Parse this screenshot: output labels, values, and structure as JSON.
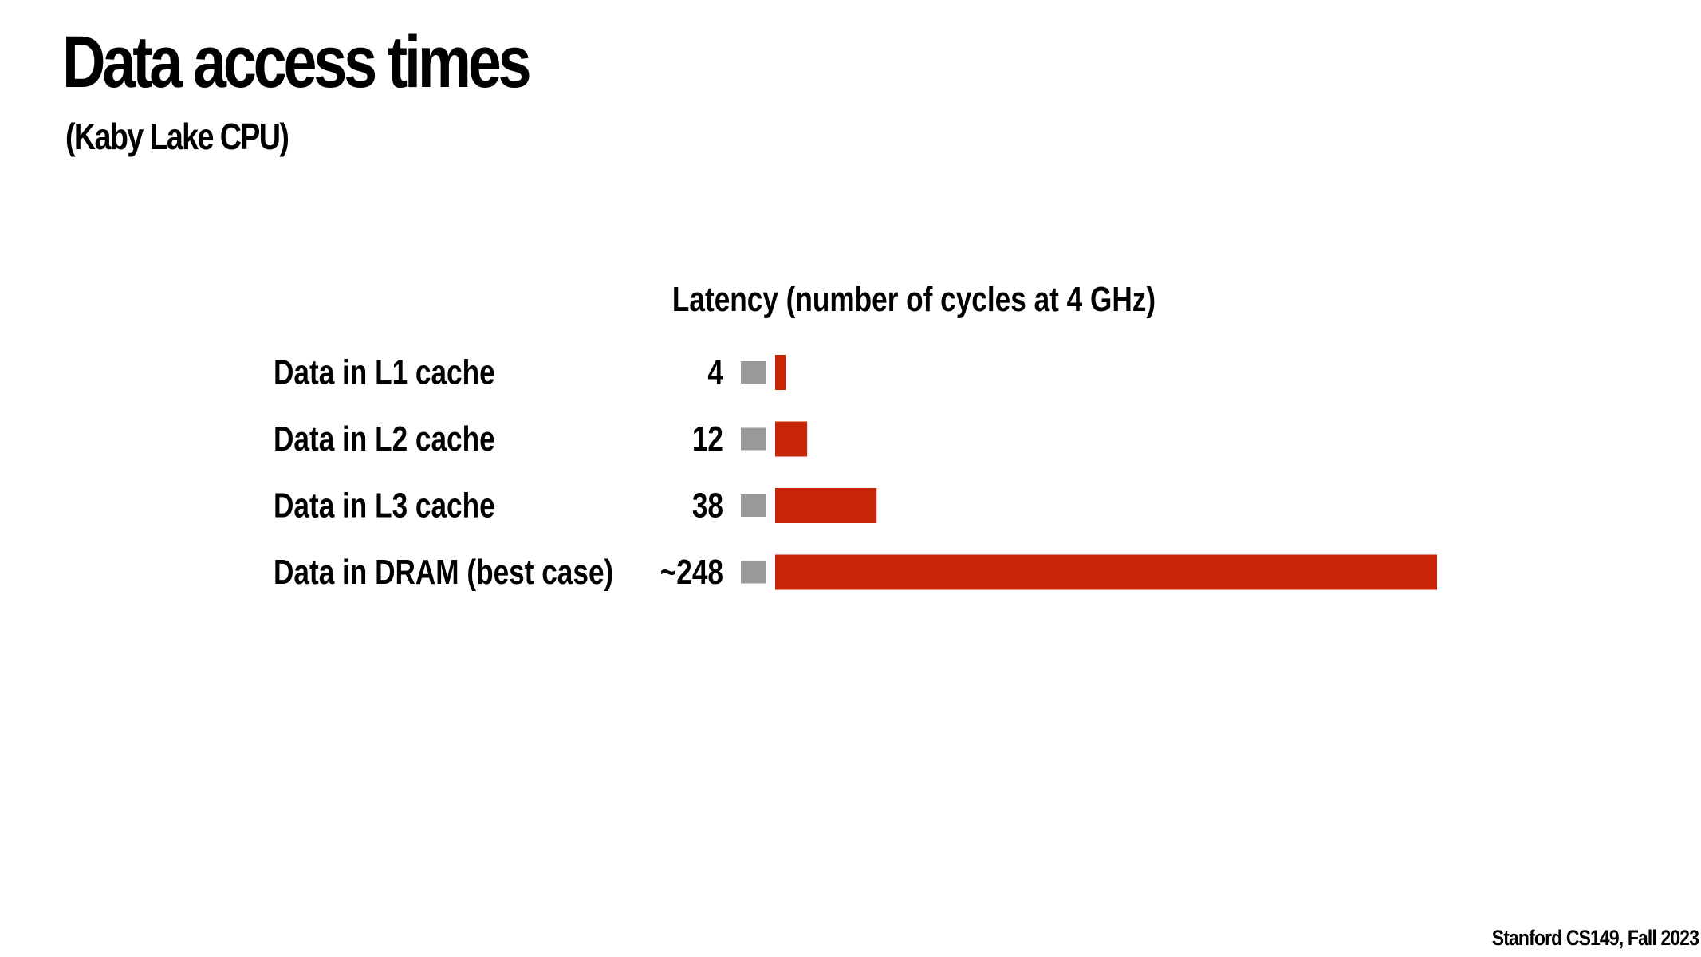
{
  "slide": {
    "title": "Data access times",
    "subtitle": "(Kaby Lake CPU)",
    "footer": "Stanford CS149, Fall 2023"
  },
  "colors": {
    "bar": "#c82506",
    "marker": "#999999",
    "text": "#000000"
  },
  "chart_data": {
    "type": "bar",
    "orientation": "horizontal",
    "title": "Latency (number of cycles at 4 GHz)",
    "categories": [
      "Data in L1 cache",
      "Data in L2 cache",
      "Data in L3 cache",
      "Data in DRAM (best case)"
    ],
    "values": [
      4,
      12,
      38,
      248
    ],
    "value_labels": [
      "4",
      "12",
      "38",
      "~248"
    ],
    "xlim": [
      0,
      248
    ],
    "grid": false,
    "legend": "none"
  }
}
